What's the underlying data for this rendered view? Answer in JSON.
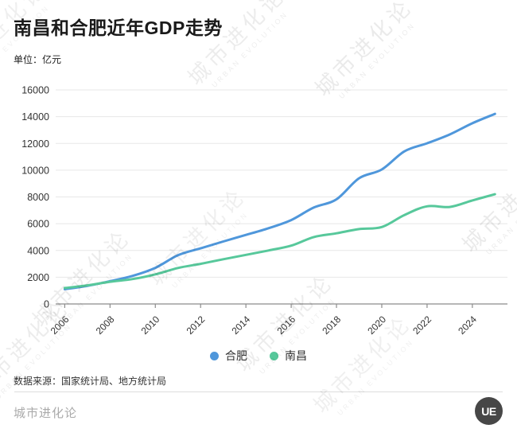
{
  "page": {
    "title": "南昌和合肥近年GDP走势",
    "unit_label": "单位：亿元",
    "source": "数据来源：国家统计局、地方统计局",
    "footer_brand": "城市进化论",
    "logo_text": "UE",
    "watermark_line1": "城市进化论",
    "watermark_line2": "URBAN EVOLUTION"
  },
  "chart_data": {
    "type": "line",
    "title": "南昌和合肥近年GDP走势",
    "unit": "亿元",
    "x": [
      2006,
      2007,
      2008,
      2009,
      2010,
      2011,
      2012,
      2013,
      2014,
      2015,
      2016,
      2017,
      2018,
      2019,
      2020,
      2021,
      2022,
      2023,
      2024,
      2025
    ],
    "series": [
      {
        "name": "合肥",
        "color": "#4F97DB",
        "values": [
          1100,
          1350,
          1700,
          2100,
          2700,
          3640,
          4160,
          4670,
          5160,
          5660,
          6270,
          7210,
          7820,
          9400,
          10050,
          11410,
          12010,
          12670,
          13510,
          14210
        ]
      },
      {
        "name": "南昌",
        "color": "#57C89B",
        "values": [
          1190,
          1390,
          1660,
          1860,
          2210,
          2690,
          3000,
          3340,
          3670,
          4000,
          4360,
          5000,
          5280,
          5600,
          5750,
          6650,
          7300,
          7250,
          7740,
          8200
        ]
      }
    ],
    "ylim": [
      0,
      16000
    ],
    "ytick_step": 2000,
    "xticks": [
      2006,
      2008,
      2010,
      2012,
      2014,
      2016,
      2018,
      2020,
      2022,
      2024
    ],
    "grid": true,
    "legend_position": "bottom",
    "axis_color": "#8c8c8c",
    "grid_color": "#e7e7e7",
    "tick_label_color": "#333333"
  }
}
